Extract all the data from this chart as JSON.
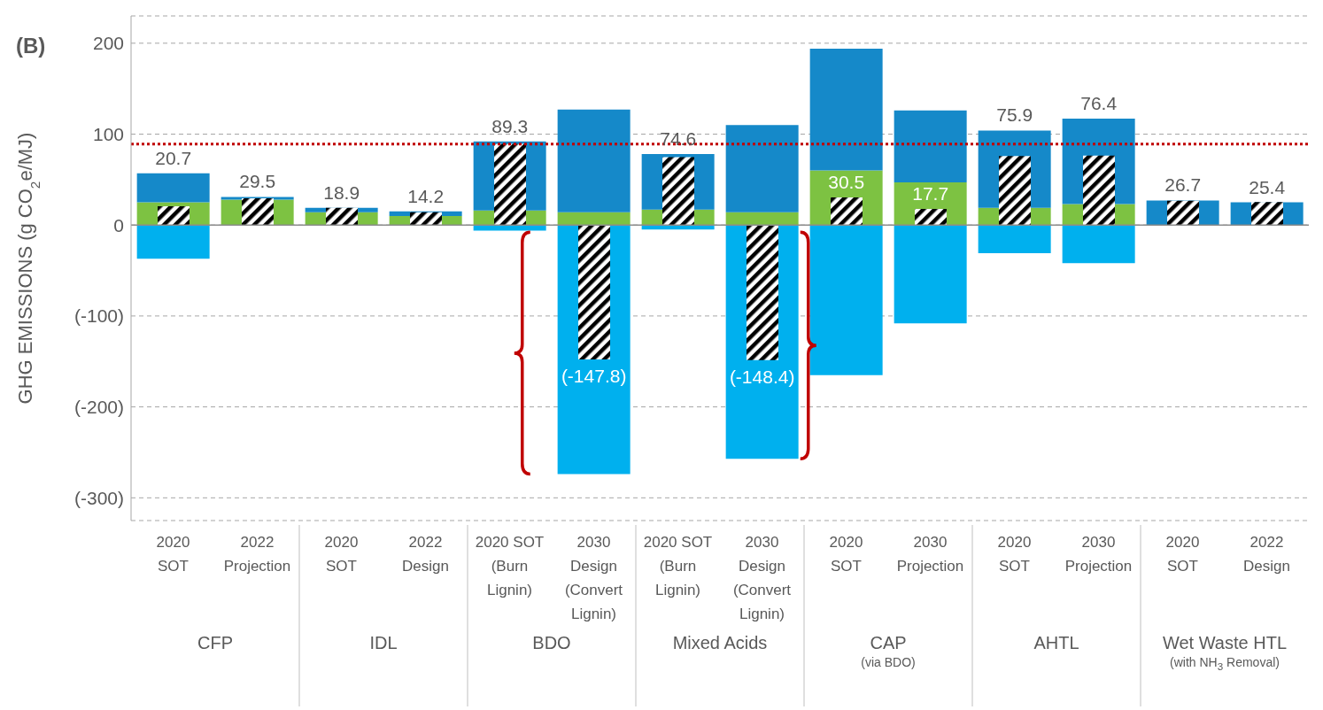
{
  "chart_data": {
    "type": "bar",
    "title": "(B)",
    "ylabel": "GHG EMISSIONS (g CO$_{2}$e/MJ)",
    "categories": [
      "2020\nSOT",
      "2022\nProjection",
      "2020\nSOT",
      "2022\nDesign",
      "2020 SOT\n(Burn\nLignin)",
      "2030\nDesign\n(Convert\nLignin)",
      "2020 SOT\n(Burn\nLignin)",
      "2030\nDesign\n(Convert\nLignin)",
      "2020\nSOT",
      "2030\nProjection",
      "2020\nSOT",
      "2030\nProjection",
      "2020\nSOT",
      "2022\nDesign"
    ],
    "series": [
      {
        "color": "#7dc242",
        "values": [
          25,
          28,
          14,
          10,
          16,
          14,
          17,
          14,
          60,
          47,
          19,
          23,
          null,
          null
        ],
        "base": [
          0,
          0,
          0,
          0,
          0,
          0,
          0,
          0,
          0,
          0,
          0,
          0,
          null,
          null
        ]
      },
      {
        "color": "#1589c9",
        "values": [
          32,
          3,
          5,
          5,
          76,
          113,
          61,
          96,
          134,
          79,
          85,
          94,
          27,
          25
        ],
        "base": [
          25,
          28,
          14,
          10,
          16,
          14,
          17,
          14,
          60,
          47,
          19,
          23,
          0,
          0
        ]
      },
      {
        "color": "#00b0ee",
        "values": [
          -37,
          null,
          null,
          null,
          -6,
          -274,
          -5,
          -257,
          -165,
          -108,
          -31,
          -42,
          null,
          null
        ],
        "base": [
          0,
          null,
          null,
          null,
          0,
          0,
          0,
          0,
          0,
          0,
          0,
          0,
          null,
          null
        ]
      },
      {
        "type": "bar",
        "color": "#000000",
        "values": [
          20.7,
          29.5,
          18.9,
          14.2,
          89.3,
          -147.8,
          74.6,
          -148.4,
          30.5,
          17.7,
          75.9,
          76.4,
          26.7,
          25.4
        ],
        "value_labels": [
          "20.7",
          "29.5",
          "18.9",
          "14.2",
          "89.3",
          "(-147.8)",
          "74.6",
          "(-148.4)",
          "30.5",
          "17.7",
          "75.9",
          "76.4",
          "26.7",
          "25.4"
        ]
      }
    ],
    "ylim": [
      -325,
      230
    ],
    "yticks": [
      {
        "value": -300,
        "label": "(-300)"
      },
      {
        "value": -200,
        "label": "(-200)"
      },
      {
        "value": -100,
        "label": "(-100)"
      },
      0,
      100,
      200
    ],
    "grid": "y",
    "ref_lines": [
      {
        "axis": "y",
        "value": 89,
        "color": "#c00000",
        "line_style": "dotted"
      }
    ],
    "annotations": [
      "CFP",
      "IDL",
      "BDO",
      "Mixed Acids",
      "CAP (via BDO)",
      "AHTL",
      "Wet Waste HTL (with NH$_{3}$ Removal)"
    ]
  }
}
